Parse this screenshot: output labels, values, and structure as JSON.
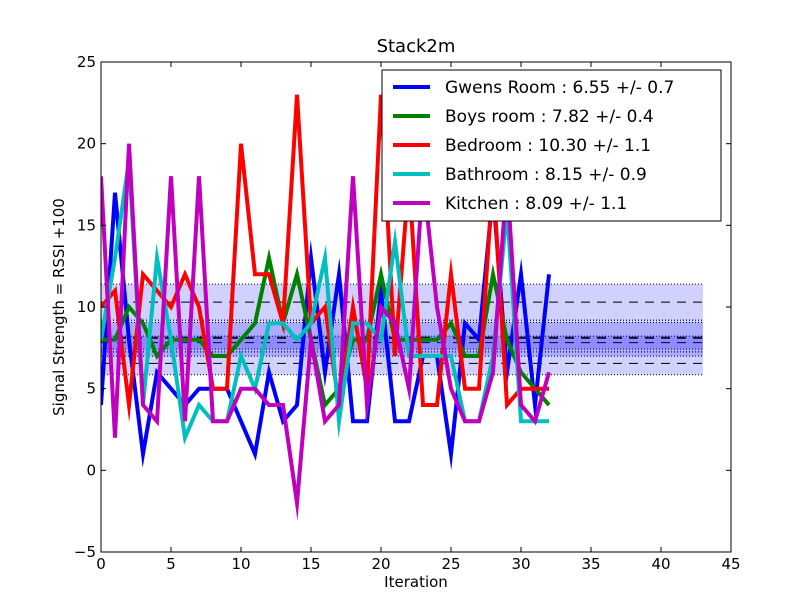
{
  "chart_data": {
    "type": "line",
    "title": "Stack2m",
    "xlabel": "Iteration",
    "ylabel": "Signal Strength  = RSSI +100",
    "xlim": [
      0,
      45
    ],
    "ylim": [
      -5,
      25
    ],
    "xticks": [
      0,
      5,
      10,
      15,
      20,
      25,
      30,
      35,
      40,
      45
    ],
    "yticks": [
      -5,
      0,
      5,
      10,
      15,
      20,
      25
    ],
    "xtick_labels": [
      "0",
      "5",
      "10",
      "15",
      "20",
      "25",
      "30",
      "35",
      "40",
      "45"
    ],
    "ytick_labels": [
      "−5",
      "0",
      "5",
      "10",
      "15",
      "20",
      "25"
    ],
    "grid": false,
    "legend_position": "top-right",
    "band_x_range": [
      0,
      43
    ],
    "series": [
      {
        "name": "Gwens Room : 6.55 +/- 0.7",
        "color": "#0000ff",
        "mean": 6.55,
        "std": 0.7,
        "x": [
          0,
          1,
          2,
          3,
          4,
          5,
          6,
          7,
          8,
          9,
          10,
          11,
          12,
          13,
          14,
          15,
          16,
          17,
          18,
          19,
          20,
          21,
          22,
          23,
          24,
          25,
          26,
          27,
          28,
          29,
          30,
          31,
          32
        ],
        "y": [
          4,
          17,
          8,
          1,
          6,
          5,
          4,
          5,
          5,
          5,
          3,
          1,
          6,
          3,
          4,
          13,
          6,
          12,
          3,
          3,
          11,
          3,
          3,
          7,
          7,
          1,
          9,
          8,
          17,
          6,
          12,
          4,
          12
        ]
      },
      {
        "name": "Boys room : 7.82 +/- 0.4",
        "color": "#008000",
        "mean": 7.82,
        "std": 0.4,
        "x": [
          0,
          1,
          2,
          3,
          4,
          5,
          6,
          7,
          8,
          9,
          10,
          11,
          12,
          13,
          14,
          15,
          16,
          17,
          18,
          19,
          20,
          21,
          22,
          23,
          24,
          25,
          26,
          27,
          28,
          29,
          30,
          31,
          32
        ],
        "y": [
          8,
          8,
          10,
          9,
          7,
          8,
          8,
          8,
          7,
          7,
          8,
          9,
          13,
          9,
          12,
          8,
          4,
          5,
          8,
          8,
          12,
          8,
          8,
          8,
          8,
          9,
          7,
          7,
          12,
          8,
          6,
          5,
          4
        ]
      },
      {
        "name": "Bedroom : 10.30 +/- 1.1",
        "color": "#ff0000",
        "mean": 10.3,
        "std": 1.1,
        "x": [
          0,
          1,
          2,
          3,
          4,
          5,
          6,
          7,
          8,
          9,
          10,
          11,
          12,
          13,
          14,
          15,
          16,
          17,
          18,
          19,
          20,
          21,
          22,
          23,
          24,
          25,
          26,
          27,
          28,
          29,
          30,
          31,
          32
        ],
        "y": [
          10,
          11,
          4,
          12,
          11,
          10,
          12,
          10,
          5,
          5,
          20,
          12,
          12,
          9,
          23,
          9,
          10,
          4,
          10,
          5,
          23,
          7,
          18,
          4,
          4,
          12,
          5,
          5,
          18,
          4,
          5,
          5,
          5
        ]
      },
      {
        "name": "Bathroom : 8.15 +/- 0.9",
        "color": "#00bfbf",
        "mean": 8.15,
        "std": 0.9,
        "x": [
          0,
          1,
          2,
          3,
          4,
          5,
          6,
          7,
          8,
          9,
          10,
          11,
          12,
          13,
          14,
          15,
          16,
          17,
          18,
          19,
          20,
          21,
          22,
          23,
          24,
          25,
          26,
          27,
          28,
          29,
          30,
          31,
          32
        ],
        "y": [
          8,
          13,
          19,
          4,
          13,
          8,
          2,
          4,
          3,
          3,
          7,
          5,
          9,
          9,
          8,
          9,
          13,
          3,
          9,
          9,
          8,
          14,
          7,
          7,
          7,
          7,
          3,
          3,
          7,
          16,
          3,
          3,
          3
        ]
      },
      {
        "name": "Kitchen : 8.09 +/- 1.1",
        "color": "#bf00bf",
        "mean": 8.09,
        "std": 1.1,
        "x": [
          0,
          1,
          2,
          3,
          4,
          5,
          6,
          7,
          8,
          9,
          10,
          11,
          12,
          13,
          14,
          15,
          16,
          17,
          18,
          19,
          20,
          21,
          22,
          23,
          24,
          25,
          26,
          27,
          28,
          29,
          30,
          31,
          32
        ],
        "y": [
          18,
          2,
          20,
          4,
          3,
          18,
          3,
          18,
          3,
          3,
          5,
          5,
          4,
          4,
          -2,
          8,
          3,
          4,
          18,
          4,
          10,
          9,
          5,
          18,
          10,
          5,
          3,
          3,
          6,
          18,
          4,
          3,
          6
        ]
      }
    ]
  }
}
